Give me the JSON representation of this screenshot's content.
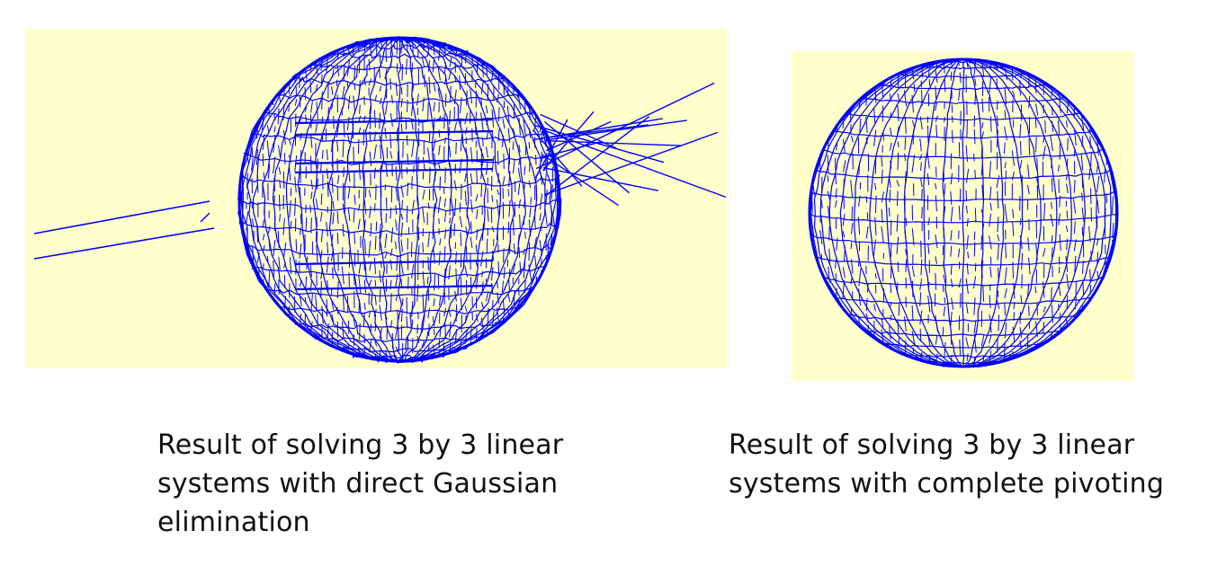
{
  "figures": [
    {
      "id": "left",
      "caption": "Result of solving 3 by 3 linear\nsystems with direct Gaussian\nelimination",
      "method": "direct Gaussian elimination"
    },
    {
      "id": "right",
      "caption": "Result of solving 3 by 3 linear\nsystems with complete pivoting",
      "method": "complete pivoting"
    }
  ],
  "colors": {
    "panel_background": "#ffffcc",
    "wireframe": "#0000ff",
    "caption_text": "#111111"
  }
}
